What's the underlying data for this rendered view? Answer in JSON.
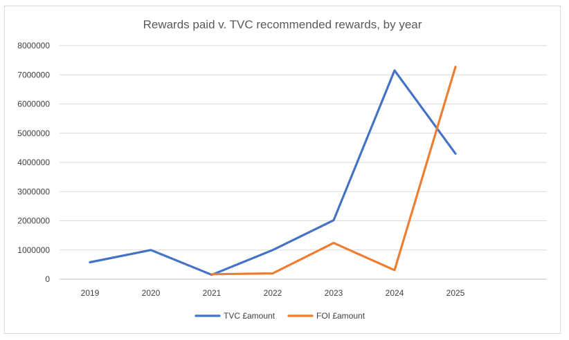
{
  "chart_data": {
    "type": "line",
    "title": "Rewards paid v. TVC recommended rewards, by year",
    "xlabel": "",
    "ylabel": "",
    "categories": [
      "2019",
      "2020",
      "2021",
      "2022",
      "2023",
      "2024",
      "2025"
    ],
    "ylim": [
      0,
      8000000
    ],
    "yticks": [
      "0",
      "1000000",
      "2000000",
      "3000000",
      "4000000",
      "5000000",
      "6000000",
      "7000000",
      "8000000"
    ],
    "grid": true,
    "legend_position": "bottom",
    "series": [
      {
        "name": "TVC £amount",
        "color": "#4472c4",
        "values": [
          580000,
          1000000,
          150000,
          1000000,
          2020000,
          7150000,
          4300000
        ]
      },
      {
        "name": "FOI £amount",
        "color": "#ed7d31",
        "values": [
          null,
          null,
          170000,
          200000,
          1240000,
          310000,
          7270000
        ]
      }
    ]
  }
}
